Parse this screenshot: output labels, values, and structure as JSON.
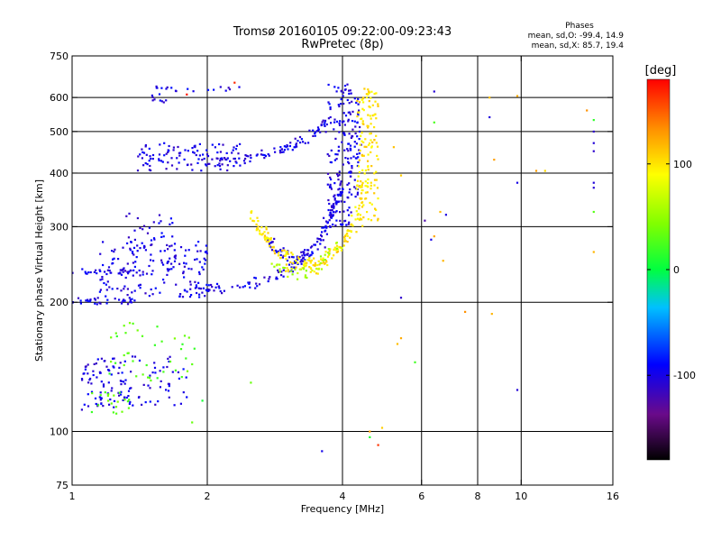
{
  "chart_data": {
    "type": "scatter",
    "title": "Tromsø 20160105 09:22:00-09:23:43",
    "subtitle": "RwPretec (8p)",
    "xlabel": "Frequency [MHz]",
    "ylabel": "Stationary phase Virtual Height [km]",
    "xscale": "log",
    "yscale": "log",
    "xlim": [
      1,
      16
    ],
    "ylim": [
      75,
      750
    ],
    "x_ticks": [
      1,
      2,
      4,
      6,
      8,
      10,
      16
    ],
    "y_ticks": [
      75,
      100,
      200,
      300,
      400,
      500,
      600,
      750
    ],
    "x_gridlines": [
      2,
      4,
      6,
      8,
      10
    ],
    "y_gridlines": [
      100,
      200,
      300,
      400,
      500,
      600
    ],
    "grid": true,
    "phase_stats": {
      "title": "Phases",
      "o_line": "mean, sd,O: -99.4, 14.9",
      "x_line": "mean, sd,X: 85.7, 19.4"
    },
    "colorbar": {
      "label": "[deg]",
      "ticks": [
        100,
        0,
        -100
      ],
      "range": [
        -180,
        180
      ],
      "colors": [
        "#000000",
        "#6a0a8a",
        "#0000ff",
        "#00c0ff",
        "#00ff40",
        "#80ff00",
        "#ffff00",
        "#ff9000",
        "#ff0000"
      ]
    },
    "series": [
      {
        "phase": -100,
        "segments": [
          {
            "kind": "band",
            "x": [
              1.0,
              1.35
            ],
            "y": [
              232,
              240
            ],
            "n": 30
          },
          {
            "kind": "band",
            "x": [
              1.0,
              1.45
            ],
            "y": [
              198,
              205
            ],
            "n": 35
          },
          {
            "kind": "band",
            "x": [
              1.15,
              2.0
            ],
            "y": [
              205,
              280
            ],
            "n": 150
          },
          {
            "kind": "band",
            "x": [
              1.3,
              1.7
            ],
            "y": [
              240,
              330
            ],
            "n": 40
          },
          {
            "kind": "band",
            "x": [
              1.4,
              2.4
            ],
            "y": [
              405,
              470
            ],
            "n": 110
          },
          {
            "kind": "band",
            "x": [
              1.5,
              1.65
            ],
            "y": [
              560,
              640
            ],
            "n": 15
          },
          {
            "kind": "band",
            "x": [
              1.65,
              2.4
            ],
            "y": [
              620,
              640
            ],
            "n": 12
          },
          {
            "kind": "band",
            "x": [
              1.05,
              1.8
            ],
            "y": [
              115,
              150
            ],
            "n": 90
          },
          {
            "kind": "band",
            "x": [
              1.05,
              1.35
            ],
            "y": [
              112,
              140
            ],
            "n": 40
          },
          {
            "kind": "band",
            "x": [
              3.7,
              4.2
            ],
            "y": [
              300,
              650
            ],
            "n": 130
          },
          {
            "kind": "band",
            "x": [
              4.1,
              4.4
            ],
            "y": [
              350,
              600
            ],
            "n": 60
          },
          {
            "kind": "curve",
            "x": [
              1.8,
              2.8,
              3.6,
              4.0
            ],
            "y": [
              210,
              225,
              275,
              380
            ],
            "n": 140
          },
          {
            "kind": "curve",
            "x": [
              2.1,
              2.8,
              3.3,
              3.7
            ],
            "y": [
              420,
              445,
              480,
              520
            ],
            "n": 80
          },
          {
            "kind": "curve",
            "x": [
              2.7,
              3.1,
              3.4,
              3.8
            ],
            "y": [
              280,
              250,
              260,
              330
            ],
            "n": 60
          }
        ]
      },
      {
        "phase": 100,
        "segments": [
          {
            "kind": "band",
            "x": [
              4.3,
              4.8
            ],
            "y": [
              300,
              630
            ],
            "n": 140
          },
          {
            "kind": "curve",
            "x": [
              2.5,
              2.9,
              3.5,
              4.3
            ],
            "y": [
              320,
              260,
              240,
              300
            ],
            "n": 110
          },
          {
            "kind": "curve",
            "x": [
              3.0,
              3.6,
              4.1,
              4.5
            ],
            "y": [
              240,
              250,
              280,
              380
            ],
            "n": 60
          }
        ]
      },
      {
        "phase": 30,
        "segments": [
          {
            "kind": "band",
            "x": [
              1.2,
              1.9
            ],
            "y": [
              130,
              180
            ],
            "n": 40
          },
          {
            "kind": "band",
            "x": [
              1.1,
              1.35
            ],
            "y": [
              110,
              125
            ],
            "n": 20
          }
        ]
      },
      {
        "phase": 60,
        "segments": [
          {
            "kind": "curve",
            "x": [
              2.8,
              3.2,
              3.5,
              4.0
            ],
            "y": [
              240,
              232,
              240,
              280
            ],
            "n": 40
          }
        ]
      },
      {
        "phase": -110,
        "segments": [
          {
            "kind": "points",
            "xy": [
              [
                6.4,
                620
              ],
              [
                8.5,
                540
              ],
              [
                14.5,
                500
              ],
              [
                14.5,
                470
              ],
              [
                14.5,
                450
              ],
              [
                14.5,
                380
              ],
              [
                14.5,
                370
              ],
              [
                9.8,
                380
              ],
              [
                6.1,
                310
              ],
              [
                6.3,
                280
              ],
              [
                5.4,
                205
              ],
              [
                9.8,
                125
              ],
              [
                3.6,
                90
              ],
              [
                6.8,
                320
              ]
            ]
          }
        ]
      },
      {
        "phase": 120,
        "segments": [
          {
            "kind": "points",
            "xy": [
              [
                8.5,
                600
              ],
              [
                9.8,
                605
              ],
              [
                10.8,
                405
              ],
              [
                11.3,
                405
              ],
              [
                14.5,
                262
              ],
              [
                7.5,
                190
              ],
              [
                8.6,
                188
              ],
              [
                5.4,
                165
              ],
              [
                5.3,
                160
              ],
              [
                6.6,
                325
              ],
              [
                6.4,
                285
              ],
              [
                4.6,
                100
              ],
              [
                4.9,
                102
              ],
              [
                8.7,
                430
              ],
              [
                6.7,
                250
              ],
              [
                14.0,
                560
              ],
              [
                5.2,
                460
              ],
              [
                5.4,
                395
              ]
            ]
          }
        ]
      },
      {
        "phase": 20,
        "segments": [
          {
            "kind": "points",
            "xy": [
              [
                6.4,
                525
              ],
              [
                14.5,
                325
              ],
              [
                5.8,
                145
              ],
              [
                2.5,
                130
              ],
              [
                4.6,
                97
              ],
              [
                1.85,
                105
              ],
              [
                1.95,
                118
              ],
              [
                14.5,
                532
              ]
            ]
          }
        ]
      },
      {
        "phase": 175,
        "segments": [
          {
            "kind": "points",
            "xy": [
              [
                4.8,
                93
              ],
              [
                1.8,
                610
              ],
              [
                2.3,
                650
              ]
            ]
          }
        ]
      }
    ]
  }
}
